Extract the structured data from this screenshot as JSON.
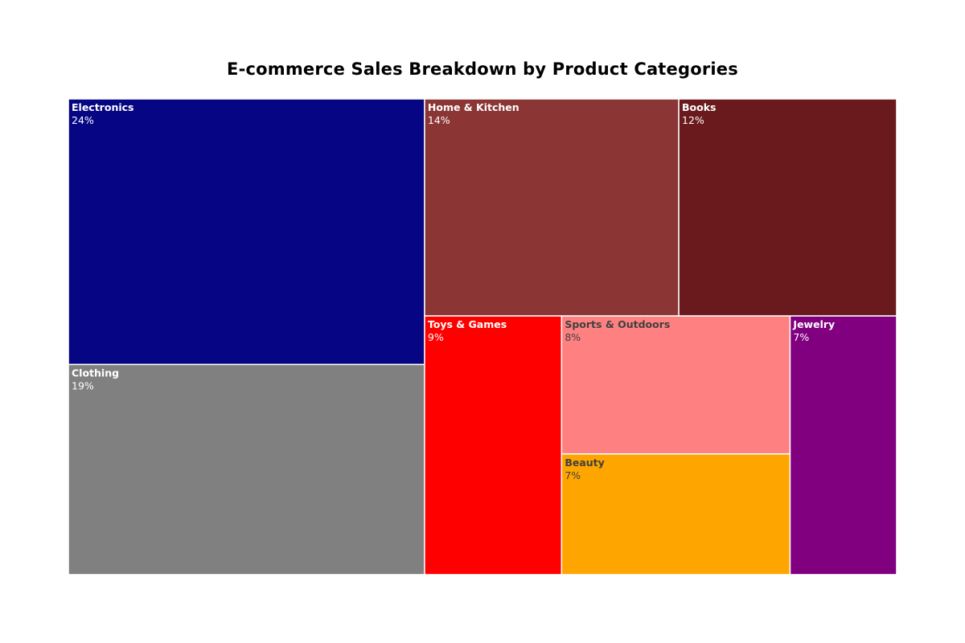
{
  "chart_data": {
    "type": "treemap",
    "title": "E-commerce Sales Breakdown by Product Categories",
    "items": [
      {
        "label": "Electronics",
        "value": 24,
        "display": "24%",
        "color": "#060684",
        "text_color": "#ffffff"
      },
      {
        "label": "Clothing",
        "value": 19,
        "display": "19%",
        "color": "#808080",
        "text_color": "#ffffff"
      },
      {
        "label": "Home & Kitchen",
        "value": 14,
        "display": "14%",
        "color": "#8b3535",
        "text_color": "#ffffff"
      },
      {
        "label": "Books",
        "value": 12,
        "display": "12%",
        "color": "#6a1a1c",
        "text_color": "#ffffff"
      },
      {
        "label": "Toys & Games",
        "value": 9,
        "display": "9%",
        "color": "#ff0000",
        "text_color": "#ffffff"
      },
      {
        "label": "Sports & Outdoors",
        "value": 8,
        "display": "8%",
        "color": "#ff8080",
        "text_color": "#404040"
      },
      {
        "label": "Beauty",
        "value": 7,
        "display": "7%",
        "color": "#ffa500",
        "text_color": "#404040"
      },
      {
        "label": "Jewelry",
        "value": 7,
        "display": "7%",
        "color": "#800080",
        "text_color": "#ffffff"
      }
    ]
  }
}
